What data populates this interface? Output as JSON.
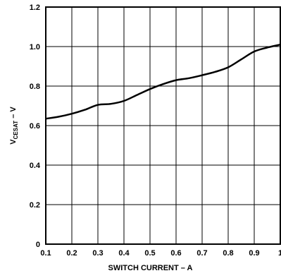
{
  "chart_data": {
    "type": "line",
    "title": "",
    "xlabel": "SWITCH CURRENT – A",
    "ylabel_main": "V",
    "ylabel_sub": "CESAT",
    "ylabel_unit": " – V",
    "xlim": [
      0.1,
      1.0
    ],
    "ylim": [
      0,
      1.2
    ],
    "x_ticks": [
      "0.1",
      "0.2",
      "0.3",
      "0.4",
      "0.5",
      "0.6",
      "0.7",
      "0.8",
      "0.9",
      "1"
    ],
    "y_ticks": [
      "0",
      "0.2",
      "0.4",
      "0.6",
      "0.8",
      "1.0",
      "1.2"
    ],
    "grid": true,
    "colors": {
      "line": "#000000",
      "grid": "#000000"
    },
    "series": [
      {
        "x": [
          0.1,
          0.15,
          0.2,
          0.25,
          0.3,
          0.35,
          0.4,
          0.45,
          0.5,
          0.55,
          0.6,
          0.65,
          0.7,
          0.75,
          0.8,
          0.85,
          0.9,
          0.95,
          1.0
        ],
        "values": [
          0.635,
          0.645,
          0.66,
          0.68,
          0.705,
          0.71,
          0.725,
          0.755,
          0.785,
          0.81,
          0.83,
          0.84,
          0.855,
          0.872,
          0.895,
          0.935,
          0.975,
          0.995,
          1.01
        ]
      }
    ]
  }
}
